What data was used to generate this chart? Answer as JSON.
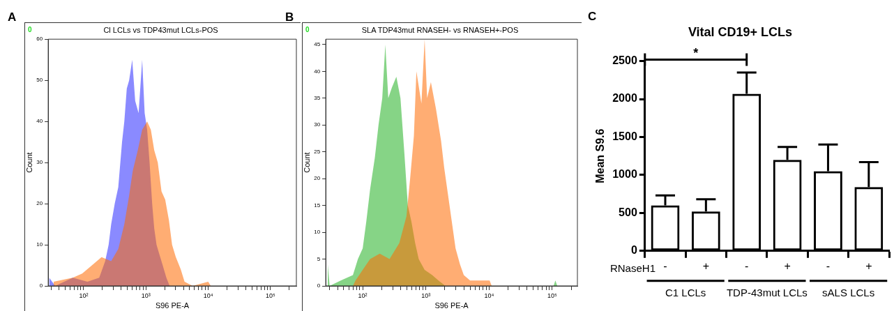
{
  "chart_data": [
    {
      "type": "area",
      "title": "Cl LCLs vs TDP43mut LCLs-POS",
      "xlabel": "S96 PE-A",
      "ylabel": "Count",
      "log": "x",
      "annotations": [
        "A",
        "0"
      ],
      "xlim": [
        27,
        260000
      ],
      "ylim": [
        0,
        60
      ],
      "yticks": [
        0,
        10,
        20,
        30,
        40,
        50,
        60
      ],
      "xticks": [
        {
          "value": 30,
          "label": null
        },
        {
          "value": 40,
          "label": null
        },
        {
          "value": 50,
          "label": null
        },
        {
          "value": 60,
          "label": null
        },
        {
          "value": 70,
          "label": null
        },
        {
          "value": 80,
          "label": null
        },
        {
          "value": 90,
          "label": null
        },
        {
          "value": 100,
          "label": "10²"
        },
        {
          "value": 200,
          "label": null
        },
        {
          "value": 300,
          "label": null
        },
        {
          "value": 400,
          "label": null
        },
        {
          "value": 500,
          "label": null
        },
        {
          "value": 600,
          "label": null
        },
        {
          "value": 700,
          "label": null
        },
        {
          "value": 800,
          "label": null
        },
        {
          "value": 900,
          "label": null
        },
        {
          "value": 1000,
          "label": "10³"
        },
        {
          "value": 2000,
          "label": null
        },
        {
          "value": 3000,
          "label": null
        },
        {
          "value": 4000,
          "label": null
        },
        {
          "value": 5000,
          "label": null
        },
        {
          "value": 6000,
          "label": null
        },
        {
          "value": 7000,
          "label": null
        },
        {
          "value": 8000,
          "label": null
        },
        {
          "value": 9000,
          "label": null
        },
        {
          "value": 10000,
          "label": "10⁴"
        },
        {
          "value": 20000,
          "label": null
        },
        {
          "value": 30000,
          "label": null
        },
        {
          "value": 40000,
          "label": null
        },
        {
          "value": 50000,
          "label": null
        },
        {
          "value": 60000,
          "label": null
        },
        {
          "value": 70000,
          "label": null
        },
        {
          "value": 80000,
          "label": null
        },
        {
          "value": 90000,
          "label": null
        },
        {
          "value": 100000,
          "label": "10⁵"
        },
        {
          "value": 200000,
          "label": null
        }
      ],
      "series": [
        {
          "color": "#ff6a00",
          "x": [
            33,
            67,
            95,
            136,
            194,
            277,
            360,
            450,
            538,
            615,
            740,
            871,
            1047,
            1200,
            1360,
            1550,
            1780,
            2040,
            2340,
            2630,
            3020,
            3630,
            4170,
            5620,
            10000,
            11000
          ],
          "values": [
            1,
            2,
            3,
            5,
            7,
            6,
            9,
            15,
            22,
            28,
            33,
            38,
            40,
            38,
            33,
            30,
            23,
            21,
            16,
            10,
            7,
            4,
            1,
            0,
            1,
            0
          ]
        },
        {
          "color": "#2a2aff",
          "x": [
            28,
            35,
            67,
            115,
            178,
            222,
            252,
            277,
            316,
            360,
            414,
            450,
            493,
            538,
            603,
            673,
            763,
            871,
            955,
            1047,
            1145,
            1260,
            1360,
            1480,
            1620,
            1860,
            2130,
            2400
          ],
          "values": [
            2,
            0,
            2,
            1,
            2,
            6,
            10,
            15,
            20,
            24,
            35,
            40,
            48,
            50,
            55,
            45,
            42,
            55,
            42,
            38,
            30,
            20,
            14,
            10,
            8,
            5,
            2,
            0
          ]
        }
      ]
    },
    {
      "type": "area",
      "title": "SLA TDP43mut RNASEH- vs RNASEH+-POS",
      "xlabel": "S96 PE-A",
      "ylabel": "Count",
      "log": "x",
      "annotations": [
        "B",
        "0"
      ],
      "xlim": [
        26,
        250000
      ],
      "ylim": [
        0,
        46
      ],
      "yticks": [
        0,
        5,
        10,
        15,
        20,
        25,
        30,
        35,
        40,
        45
      ],
      "xticks": [
        {
          "value": 30,
          "label": null
        },
        {
          "value": 40,
          "label": null
        },
        {
          "value": 50,
          "label": null
        },
        {
          "value": 60,
          "label": null
        },
        {
          "value": 70,
          "label": null
        },
        {
          "value": 80,
          "label": null
        },
        {
          "value": 90,
          "label": null
        },
        {
          "value": 100,
          "label": "10²"
        },
        {
          "value": 200,
          "label": null
        },
        {
          "value": 300,
          "label": null
        },
        {
          "value": 400,
          "label": null
        },
        {
          "value": 500,
          "label": null
        },
        {
          "value": 600,
          "label": null
        },
        {
          "value": 700,
          "label": null
        },
        {
          "value": 800,
          "label": null
        },
        {
          "value": 900,
          "label": null
        },
        {
          "value": 1000,
          "label": "10³"
        },
        {
          "value": 2000,
          "label": null
        },
        {
          "value": 3000,
          "label": null
        },
        {
          "value": 4000,
          "label": null
        },
        {
          "value": 5000,
          "label": null
        },
        {
          "value": 6000,
          "label": null
        },
        {
          "value": 7000,
          "label": null
        },
        {
          "value": 8000,
          "label": null
        },
        {
          "value": 9000,
          "label": null
        },
        {
          "value": 10000,
          "label": "10⁴"
        },
        {
          "value": 20000,
          "label": null
        },
        {
          "value": 30000,
          "label": null
        },
        {
          "value": 40000,
          "label": null
        },
        {
          "value": 50000,
          "label": null
        },
        {
          "value": 60000,
          "label": null
        },
        {
          "value": 70000,
          "label": null
        },
        {
          "value": 80000,
          "label": null
        },
        {
          "value": 90000,
          "label": null
        },
        {
          "value": 100000,
          "label": "10⁵"
        },
        {
          "value": 200000,
          "label": null
        }
      ],
      "series": [
        {
          "color": "#ff6a00",
          "x": [
            70,
            77,
            100,
            131,
            186,
            266,
            380,
            493,
            563,
            646,
            708,
            850,
            955,
            1047,
            1200,
            1445,
            1740,
            1950,
            2240,
            2570,
            2950,
            3470,
            3980,
            5010,
            10200,
            11000
          ],
          "values": [
            0,
            1,
            3,
            5,
            6,
            5,
            8,
            13,
            20,
            28,
            40,
            34,
            46,
            35,
            38,
            33,
            27,
            22,
            17,
            12,
            7,
            4,
            2,
            1,
            1,
            0
          ]
        },
        {
          "color": "#22b022",
          "x": [
            28,
            30,
            45,
            70,
            84,
            100,
            114,
            131,
            156,
            178,
            204,
            228,
            254,
            290,
            341,
            396,
            455,
            518,
            590,
            676,
            770,
            955,
            1260,
            1580,
            2040,
            105000,
            112000,
            120000
          ],
          "values": [
            4,
            0,
            1,
            2,
            5,
            7,
            12,
            18,
            24,
            30,
            35,
            45,
            35,
            37,
            39,
            35,
            25,
            15,
            12,
            8,
            5,
            3,
            2,
            1,
            0,
            0,
            1,
            0
          ]
        }
      ]
    },
    {
      "type": "bar",
      "title": "Vital CD19+ LCLs",
      "ylabel": "Mean S9.6",
      "annotations": [
        "C",
        "*",
        "RNaseH1",
        "C1 LCLs",
        "TDP-43mut LCLs",
        "sALS LCLs"
      ],
      "categories": [
        "-",
        "+",
        "-",
        "+",
        "-",
        "+"
      ],
      "values": [
        600,
        520,
        2070,
        1200,
        1050,
        840
      ],
      "errors": [
        130,
        160,
        280,
        170,
        350,
        330
      ],
      "colors": [
        "#000000",
        "#000000",
        "#000000",
        "#000000",
        "#000000",
        "#000000"
      ],
      "ylim": [
        0,
        2500
      ],
      "yticks": [
        0,
        500,
        1000,
        1500,
        2000,
        2500
      ]
    }
  ]
}
